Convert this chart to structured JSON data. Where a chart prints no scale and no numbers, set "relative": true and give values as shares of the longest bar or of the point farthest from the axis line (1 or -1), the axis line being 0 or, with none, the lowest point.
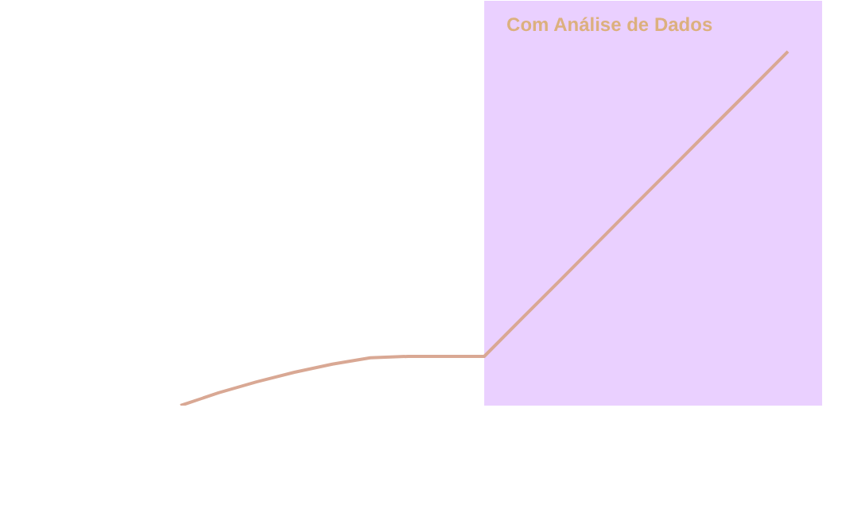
{
  "chart_data": {
    "type": "line",
    "relative": true,
    "categories": [
      null,
      null,
      null,
      null,
      null,
      null,
      null,
      null,
      null,
      null,
      null,
      null,
      null,
      null,
      null,
      null,
      null
    ],
    "series": [
      {
        "color": "#d9a894",
        "values": [
          0,
          0.036,
          0.067,
          0.094,
          0.117,
          0.135,
          0.139,
          0.139,
          0.139,
          0.247,
          0.354,
          0.462,
          0.57,
          0.677,
          0.785,
          0.892,
          1
        ]
      }
    ],
    "annotations": [
      "Com Análise de Dados"
    ],
    "grid": false
  }
}
